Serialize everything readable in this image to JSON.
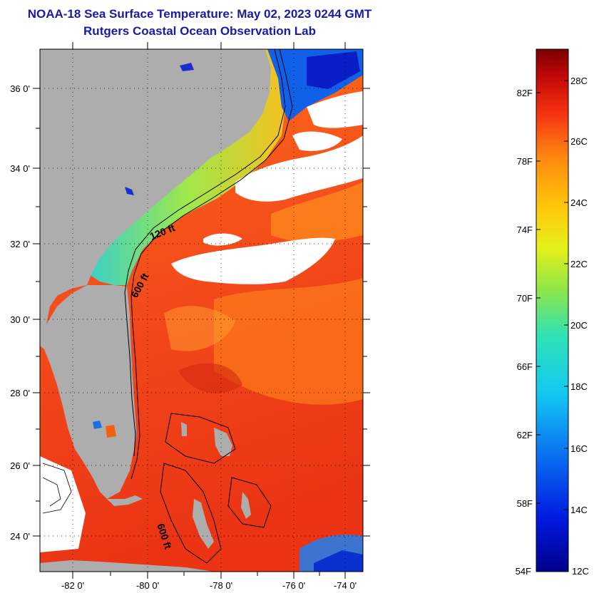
{
  "header": {
    "title": "NOAA-18 Sea Surface Temperature:  May 02, 2023 0244 GMT",
    "subtitle": "Rutgers Coastal Ocean Observation Lab"
  },
  "map": {
    "lat_ticks": [
      "36 0'",
      "34 0'",
      "32 0'",
      "30 0'",
      "28 0'",
      "26 0'",
      "24 0'"
    ],
    "lon_ticks": [
      "-82 0'",
      "-80 0'",
      "-78 0'",
      "-76 0'",
      "-74 0'"
    ],
    "contours": [
      {
        "label": "120 ft"
      },
      {
        "label": "600 ft"
      },
      {
        "label": "600 ft"
      }
    ],
    "colors": {
      "land": "#adadad",
      "cloud": "#ffffff",
      "warm": "#ee3b12",
      "cool": "#1aa0e0"
    }
  },
  "colorbar": {
    "fahrenheit": [
      "82F",
      "78F",
      "74F",
      "70F",
      "66F",
      "62F",
      "58F",
      "54F"
    ],
    "celsius": [
      "28C",
      "26C",
      "24C",
      "22C",
      "20C",
      "18C",
      "16C",
      "14C",
      "12C"
    ]
  }
}
